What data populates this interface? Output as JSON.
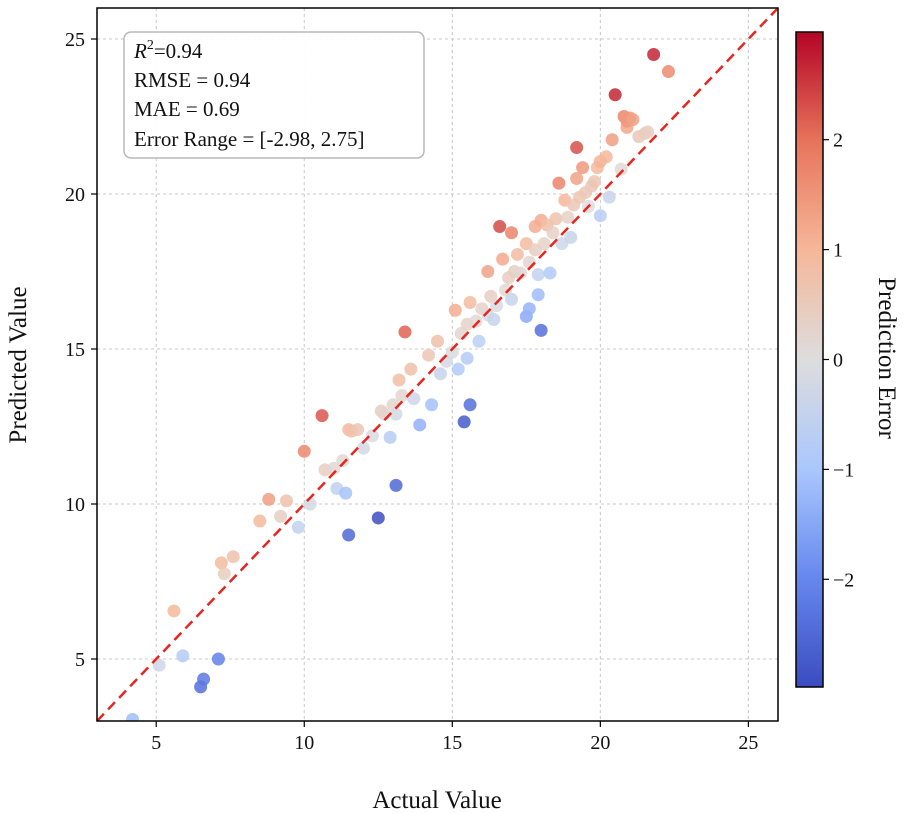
{
  "chart_data": {
    "type": "scatter",
    "title": "",
    "xlabel": "Actual Value",
    "ylabel": "Predicted Value",
    "xlim": [
      3,
      26
    ],
    "ylim": [
      3,
      26
    ],
    "xticks": [
      5,
      10,
      15,
      20,
      25
    ],
    "yticks": [
      5,
      10,
      15,
      20,
      25
    ],
    "grid": true,
    "reference_line": {
      "type": "y=x",
      "style": "dashed",
      "color": "#e8251f"
    },
    "colorbar": {
      "label": "Prediction Error",
      "range": [
        -2.98,
        2.98
      ],
      "ticks": [
        -2,
        -1,
        0,
        1,
        2
      ],
      "tick_labels": [
        "−2",
        "−1",
        "0",
        "1",
        "2"
      ],
      "colormap": "coolwarm",
      "stops": [
        "#3b4cc0",
        "#6688ee",
        "#aac7fd",
        "#dddddd",
        "#f6b799",
        "#e7745b",
        "#b40426"
      ]
    },
    "stats": {
      "r2_label": "R",
      "r2_sup": "2",
      "r2_value": "=0.94",
      "rmse": "RMSE = 0.94",
      "mae": "MAE = 0.69",
      "error_range": "Error Range = [-2.98, 2.75]"
    },
    "points": [
      {
        "x": 4.2,
        "y": 3.05
      },
      {
        "x": 5.1,
        "y": 4.8
      },
      {
        "x": 5.6,
        "y": 6.55
      },
      {
        "x": 5.9,
        "y": 5.1
      },
      {
        "x": 6.5,
        "y": 4.1
      },
      {
        "x": 6.6,
        "y": 4.35
      },
      {
        "x": 7.1,
        "y": 5.0
      },
      {
        "x": 7.2,
        "y": 8.1
      },
      {
        "x": 7.3,
        "y": 7.75
      },
      {
        "x": 7.6,
        "y": 8.3
      },
      {
        "x": 8.5,
        "y": 9.45
      },
      {
        "x": 8.8,
        "y": 10.15
      },
      {
        "x": 9.2,
        "y": 9.6
      },
      {
        "x": 9.4,
        "y": 10.1
      },
      {
        "x": 9.8,
        "y": 9.25
      },
      {
        "x": 10.0,
        "y": 11.7
      },
      {
        "x": 10.2,
        "y": 10.0
      },
      {
        "x": 10.6,
        "y": 12.85
      },
      {
        "x": 10.7,
        "y": 11.1
      },
      {
        "x": 11.0,
        "y": 11.15
      },
      {
        "x": 11.1,
        "y": 10.5
      },
      {
        "x": 11.3,
        "y": 11.4
      },
      {
        "x": 11.4,
        "y": 10.35
      },
      {
        "x": 11.5,
        "y": 9.0
      },
      {
        "x": 11.5,
        "y": 12.4
      },
      {
        "x": 11.6,
        "y": 12.35
      },
      {
        "x": 11.8,
        "y": 12.4
      },
      {
        "x": 12.0,
        "y": 11.8
      },
      {
        "x": 12.3,
        "y": 12.2
      },
      {
        "x": 12.5,
        "y": 9.55
      },
      {
        "x": 12.6,
        "y": 13.0
      },
      {
        "x": 12.7,
        "y": 12.9
      },
      {
        "x": 12.9,
        "y": 12.15
      },
      {
        "x": 13.0,
        "y": 13.2
      },
      {
        "x": 13.1,
        "y": 12.9
      },
      {
        "x": 13.1,
        "y": 10.6
      },
      {
        "x": 13.2,
        "y": 14.0
      },
      {
        "x": 13.3,
        "y": 13.5
      },
      {
        "x": 13.4,
        "y": 15.55
      },
      {
        "x": 13.6,
        "y": 14.35
      },
      {
        "x": 13.7,
        "y": 13.4
      },
      {
        "x": 13.9,
        "y": 12.55
      },
      {
        "x": 14.2,
        "y": 14.8
      },
      {
        "x": 14.3,
        "y": 13.2
      },
      {
        "x": 14.5,
        "y": 15.25
      },
      {
        "x": 14.6,
        "y": 14.2
      },
      {
        "x": 14.8,
        "y": 14.6
      },
      {
        "x": 15.0,
        "y": 14.9
      },
      {
        "x": 15.1,
        "y": 16.25
      },
      {
        "x": 15.2,
        "y": 14.35
      },
      {
        "x": 15.3,
        "y": 15.5
      },
      {
        "x": 15.4,
        "y": 12.65
      },
      {
        "x": 15.5,
        "y": 15.8
      },
      {
        "x": 15.5,
        "y": 14.7
      },
      {
        "x": 15.6,
        "y": 16.5
      },
      {
        "x": 15.6,
        "y": 13.2
      },
      {
        "x": 15.8,
        "y": 15.9
      },
      {
        "x": 15.9,
        "y": 15.25
      },
      {
        "x": 16.0,
        "y": 16.3
      },
      {
        "x": 16.2,
        "y": 16.1
      },
      {
        "x": 16.2,
        "y": 17.5
      },
      {
        "x": 16.3,
        "y": 16.7
      },
      {
        "x": 16.4,
        "y": 15.95
      },
      {
        "x": 16.5,
        "y": 16.4
      },
      {
        "x": 16.6,
        "y": 18.95
      },
      {
        "x": 16.7,
        "y": 17.9
      },
      {
        "x": 16.8,
        "y": 16.9
      },
      {
        "x": 16.9,
        "y": 17.3
      },
      {
        "x": 17.0,
        "y": 18.75
      },
      {
        "x": 17.0,
        "y": 16.6
      },
      {
        "x": 17.1,
        "y": 17.5
      },
      {
        "x": 17.2,
        "y": 18.05
      },
      {
        "x": 17.3,
        "y": 17.45
      },
      {
        "x": 17.5,
        "y": 18.4
      },
      {
        "x": 17.5,
        "y": 16.05
      },
      {
        "x": 17.6,
        "y": 17.8
      },
      {
        "x": 17.6,
        "y": 16.3
      },
      {
        "x": 17.8,
        "y": 18.95
      },
      {
        "x": 17.8,
        "y": 18.2
      },
      {
        "x": 17.9,
        "y": 16.75
      },
      {
        "x": 17.9,
        "y": 17.4
      },
      {
        "x": 18.0,
        "y": 19.15
      },
      {
        "x": 18.0,
        "y": 15.6
      },
      {
        "x": 18.1,
        "y": 18.4
      },
      {
        "x": 18.2,
        "y": 19.0
      },
      {
        "x": 18.3,
        "y": 17.45
      },
      {
        "x": 18.4,
        "y": 18.75
      },
      {
        "x": 18.5,
        "y": 19.2
      },
      {
        "x": 18.6,
        "y": 20.35
      },
      {
        "x": 18.7,
        "y": 18.4
      },
      {
        "x": 18.8,
        "y": 19.8
      },
      {
        "x": 18.9,
        "y": 19.25
      },
      {
        "x": 19.0,
        "y": 18.6
      },
      {
        "x": 19.1,
        "y": 19.65
      },
      {
        "x": 19.2,
        "y": 21.5
      },
      {
        "x": 19.2,
        "y": 20.5
      },
      {
        "x": 19.3,
        "y": 19.9
      },
      {
        "x": 19.4,
        "y": 20.85
      },
      {
        "x": 19.5,
        "y": 20.05
      },
      {
        "x": 19.6,
        "y": 19.6
      },
      {
        "x": 19.7,
        "y": 20.25
      },
      {
        "x": 19.8,
        "y": 20.4
      },
      {
        "x": 19.9,
        "y": 20.85
      },
      {
        "x": 20.0,
        "y": 19.3
      },
      {
        "x": 20.0,
        "y": 21.05
      },
      {
        "x": 20.2,
        "y": 21.2
      },
      {
        "x": 20.3,
        "y": 19.9
      },
      {
        "x": 20.4,
        "y": 21.75
      },
      {
        "x": 20.5,
        "y": 23.2
      },
      {
        "x": 20.7,
        "y": 20.8
      },
      {
        "x": 20.8,
        "y": 22.5
      },
      {
        "x": 20.9,
        "y": 22.15
      },
      {
        "x": 20.9,
        "y": 22.35
      },
      {
        "x": 21.0,
        "y": 22.45
      },
      {
        "x": 21.1,
        "y": 22.4
      },
      {
        "x": 21.3,
        "y": 21.85
      },
      {
        "x": 21.5,
        "y": 21.95
      },
      {
        "x": 21.6,
        "y": 22.0
      },
      {
        "x": 21.8,
        "y": 24.5
      },
      {
        "x": 22.3,
        "y": 23.95
      }
    ]
  }
}
